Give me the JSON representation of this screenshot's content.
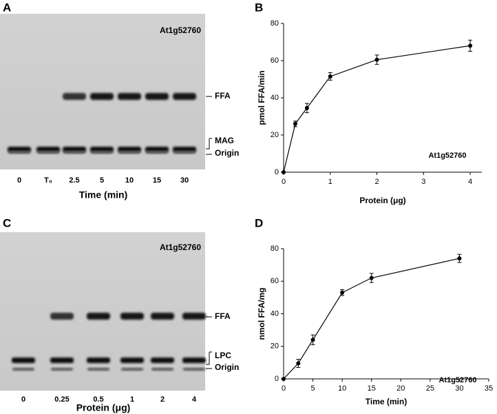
{
  "gel_a": {
    "panel": "A",
    "title": "At1g52760",
    "lanes": [
      "0",
      "T₀",
      "2.5",
      "5",
      "10",
      "15",
      "30"
    ],
    "xlabel": "Time (min)",
    "bands": [
      "FFA",
      "MAG",
      "Origin"
    ]
  },
  "gel_c": {
    "panel": "C",
    "title": "At1g52760",
    "lanes": [
      "0",
      "0.25",
      "0.5",
      "1",
      "2",
      "4"
    ],
    "xlabel": "Protein (μg)",
    "bands": [
      "FFA",
      "LPC",
      "Origin"
    ]
  },
  "chart_data": [
    {
      "type": "line",
      "panel": "B",
      "annotation": "At1g52760",
      "xlabel": "Protein (μg)",
      "ylabel": "pmol FFA/min",
      "x": [
        0,
        0.25,
        0.5,
        1,
        2,
        4
      ],
      "values": [
        0,
        26,
        34.5,
        51.5,
        60.5,
        68
      ],
      "errors": [
        null,
        1.5,
        2.5,
        2,
        2.5,
        3
      ],
      "color": "#000000",
      "xlim": [
        0,
        4.25
      ],
      "ylim": [
        0,
        80
      ],
      "xticks": [
        0,
        1,
        2,
        3,
        4
      ],
      "yticks": [
        0,
        20,
        40,
        60,
        80
      ]
    },
    {
      "type": "line",
      "panel": "D",
      "annotation": "At1g52760",
      "xlabel": "Time (min)",
      "ylabel": "nmol FFA/mg",
      "x": [
        0,
        2.5,
        5,
        10,
        15,
        30
      ],
      "values": [
        0,
        9.5,
        24,
        53,
        62,
        74
      ],
      "errors": [
        null,
        2.5,
        3,
        1.8,
        2.8,
        2.5
      ],
      "color": "#000000",
      "xlim": [
        0,
        35
      ],
      "ylim": [
        0,
        80
      ],
      "xticks": [
        0,
        5,
        10,
        15,
        20,
        25,
        30,
        35
      ],
      "yticks": [
        0,
        20,
        40,
        60,
        80
      ]
    }
  ]
}
